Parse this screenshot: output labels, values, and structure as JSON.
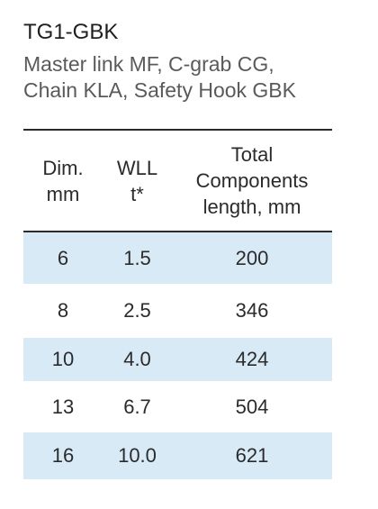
{
  "heading": {
    "title": "TG1-GBK",
    "subtitle_lines": [
      "Master link MF, C-grab CG,",
      "Chain KLA, Safety Hook GBK"
    ]
  },
  "table": {
    "headers": [
      {
        "lines": [
          "Dim.",
          "mm"
        ]
      },
      {
        "lines": [
          "WLL",
          "t*"
        ]
      },
      {
        "lines": [
          "Total",
          "Components",
          "length, mm"
        ]
      }
    ],
    "rows": [
      {
        "dim": "6",
        "wll": "1.5",
        "length": "200",
        "shaded": true
      },
      {
        "dim": "8",
        "wll": "2.5",
        "length": "346",
        "shaded": false
      },
      {
        "dim": "10",
        "wll": "4.0",
        "length": "424",
        "shaded": true
      },
      {
        "dim": "13",
        "wll": "6.7",
        "length": "504",
        "shaded": false
      },
      {
        "dim": "16",
        "wll": "10.0",
        "length": "621",
        "shaded": true
      }
    ],
    "shade_color": "#d9eaf7"
  }
}
